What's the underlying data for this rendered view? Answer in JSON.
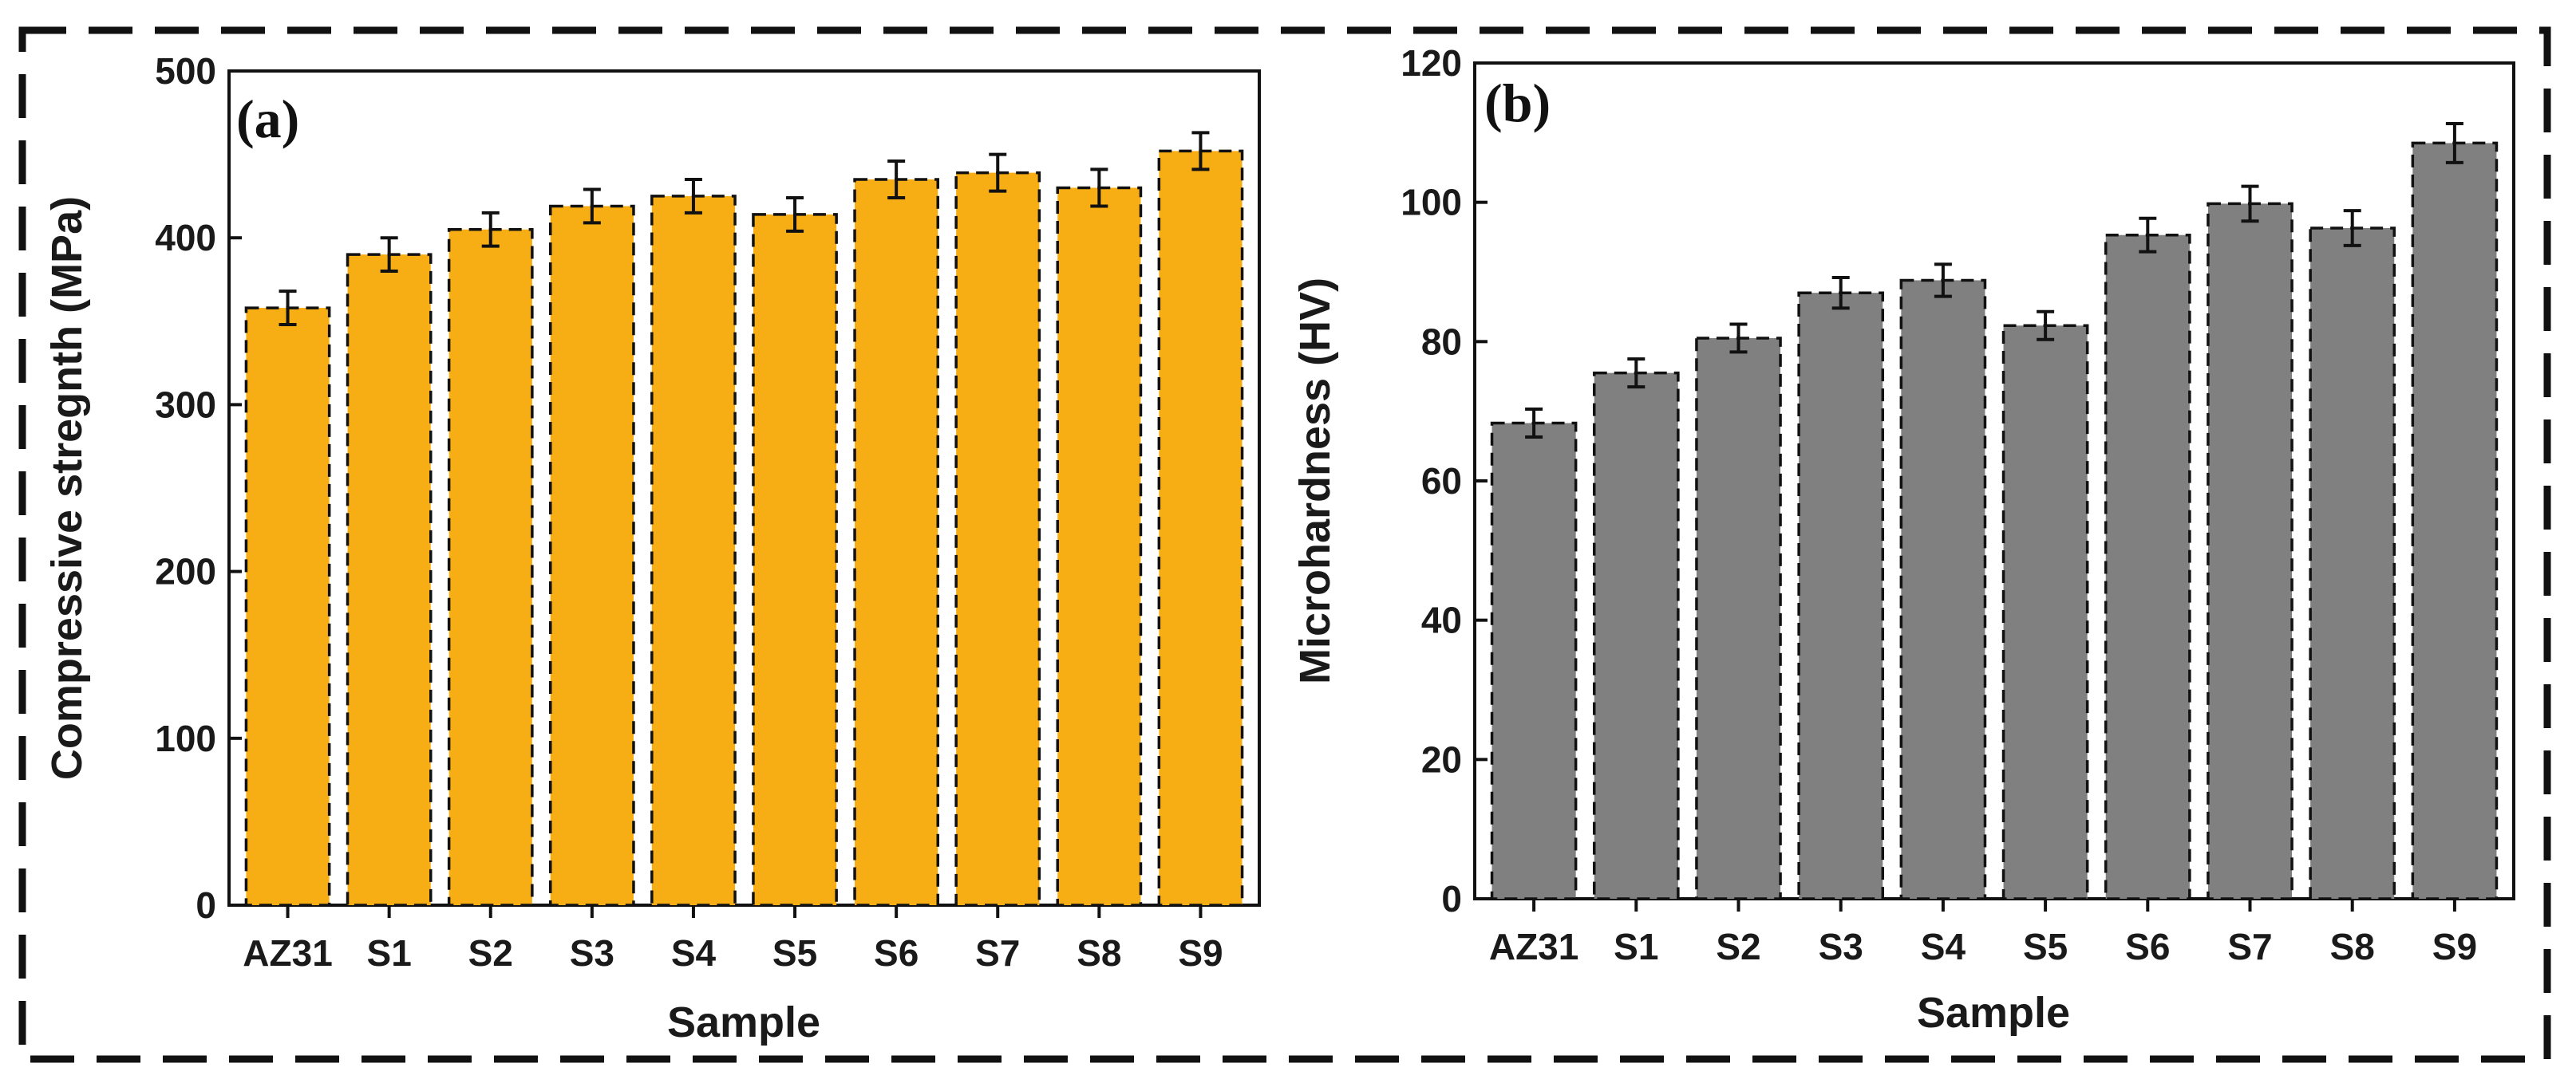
{
  "chart_data": [
    {
      "type": "bar",
      "panel_label": "(a)",
      "categories": [
        "AZ31",
        "S1",
        "S2",
        "S3",
        "S4",
        "S5",
        "S6",
        "S7",
        "S8",
        "S9"
      ],
      "values": [
        358,
        390,
        405,
        419,
        425,
        414,
        435,
        439,
        430,
        452
      ],
      "errors": [
        10,
        10,
        10,
        10,
        10,
        10,
        11,
        11,
        11,
        11
      ],
      "xlabel": "Sample",
      "ylabel": "Compressive stregnth (MPa)",
      "ylim": [
        0,
        500
      ],
      "yticks": [
        0,
        100,
        200,
        300,
        400,
        500
      ],
      "bar_color": "#f7ad14",
      "grid": false
    },
    {
      "type": "bar",
      "panel_label": "(b)",
      "categories": [
        "AZ31",
        "S1",
        "S2",
        "S3",
        "S4",
        "S5",
        "S6",
        "S7",
        "S8",
        "S9"
      ],
      "values": [
        68.3,
        75.5,
        80.5,
        87,
        88.8,
        82.3,
        95.3,
        99.8,
        96.3,
        108.5
      ],
      "errors": [
        2,
        2,
        2,
        2.2,
        2.3,
        2,
        2.4,
        2.5,
        2.5,
        2.8
      ],
      "xlabel": "Sample",
      "ylabel": "Microhardness (HV)",
      "ylim": [
        0,
        120
      ],
      "yticks": [
        0,
        20,
        40,
        60,
        80,
        100,
        120
      ],
      "bar_color": "#808080",
      "grid": false
    }
  ]
}
